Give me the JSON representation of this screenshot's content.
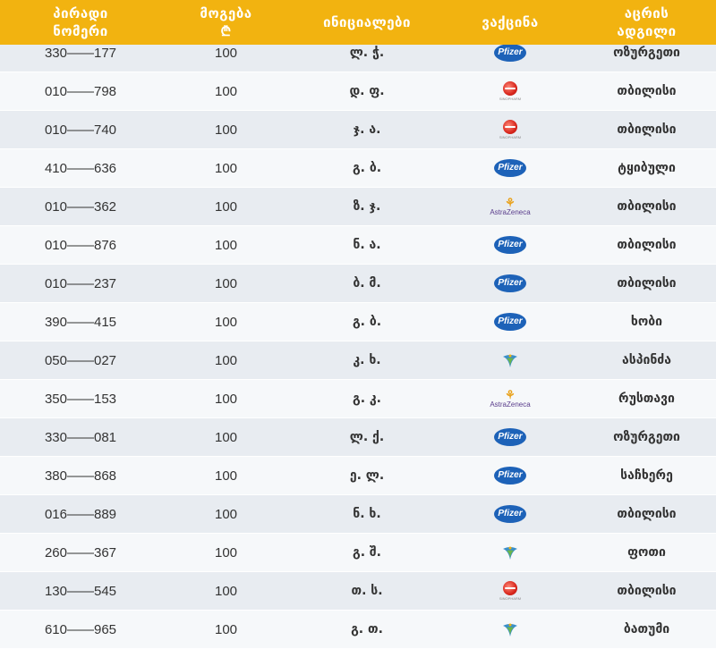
{
  "header": {
    "id_line1": "პირადი",
    "id_line2": "ნომერი",
    "amount_line1": "მოგება",
    "amount_line2": "₾",
    "initials": "ინიციალები",
    "vaccine": "ვაქცინა",
    "location_line1": "აცრის",
    "location_line2": "ადგილი"
  },
  "vaccine_logos": {
    "pfizer": "Pfizer",
    "astrazeneca": "AstraZeneca",
    "sinopharm": "SINOPHARM"
  },
  "colors": {
    "header_bg": "#f2b310",
    "row_odd": "#e8ecf1",
    "row_even": "#f6f8fa",
    "pfizer": "#1d62b8",
    "sinopharm": "#d8261c"
  },
  "rows": [
    {
      "id": "330——177",
      "amount": "100",
      "initials": "ლ. ჭ.",
      "vaccine": "pfizer",
      "location": "ოზურგეთი"
    },
    {
      "id": "010——798",
      "amount": "100",
      "initials": "დ. ფ.",
      "vaccine": "sinopharm",
      "location": "თბილისი"
    },
    {
      "id": "010——740",
      "amount": "100",
      "initials": "ჯ. ა.",
      "vaccine": "sinopharm",
      "location": "თბილისი"
    },
    {
      "id": "410——636",
      "amount": "100",
      "initials": "გ. ბ.",
      "vaccine": "pfizer",
      "location": "ტყიბული"
    },
    {
      "id": "010——362",
      "amount": "100",
      "initials": "ზ. ჯ.",
      "vaccine": "astrazeneca",
      "location": "თბილისი"
    },
    {
      "id": "010——876",
      "amount": "100",
      "initials": "ნ. ა.",
      "vaccine": "pfizer",
      "location": "თბილისი"
    },
    {
      "id": "010——237",
      "amount": "100",
      "initials": "ბ. მ.",
      "vaccine": "pfizer",
      "location": "თბილისი"
    },
    {
      "id": "390——415",
      "amount": "100",
      "initials": "გ. ბ.",
      "vaccine": "pfizer",
      "location": "ხობი"
    },
    {
      "id": "050——027",
      "amount": "100",
      "initials": "კ. ხ.",
      "vaccine": "sputnik",
      "location": "ასპინძა"
    },
    {
      "id": "350——153",
      "amount": "100",
      "initials": "გ. კ.",
      "vaccine": "astrazeneca",
      "location": "რუსთავი"
    },
    {
      "id": "330——081",
      "amount": "100",
      "initials": "ლ. ქ.",
      "vaccine": "pfizer",
      "location": "ოზურგეთი"
    },
    {
      "id": "380——868",
      "amount": "100",
      "initials": "ე. ლ.",
      "vaccine": "pfizer",
      "location": "საჩხერე"
    },
    {
      "id": "016——889",
      "amount": "100",
      "initials": "ნ. ხ.",
      "vaccine": "pfizer",
      "location": "თბილისი"
    },
    {
      "id": "260——367",
      "amount": "100",
      "initials": "გ. შ.",
      "vaccine": "sputnik",
      "location": "ფოთი"
    },
    {
      "id": "130——545",
      "amount": "100",
      "initials": "თ. ს.",
      "vaccine": "sinopharm",
      "location": "თბილისი"
    },
    {
      "id": "610——965",
      "amount": "100",
      "initials": "გ. თ.",
      "vaccine": "sputnik",
      "location": "ბათუმი"
    }
  ]
}
